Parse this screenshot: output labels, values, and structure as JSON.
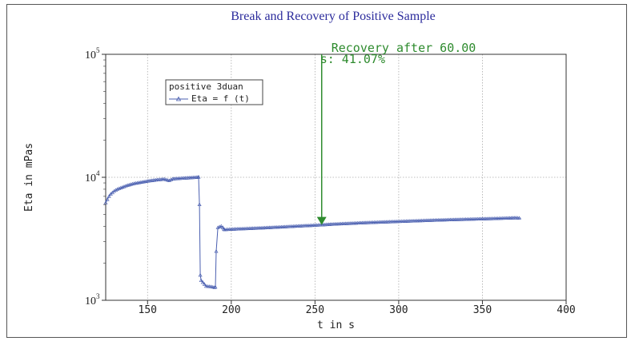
{
  "chart_data": {
    "type": "line",
    "title": "Break and Recovery of Positive Sample",
    "xlabel": "t in s",
    "ylabel": "Eta in mPas",
    "xlim": [
      125,
      400
    ],
    "ylim": [
      1000,
      100000
    ],
    "yscale": "log",
    "grid": true,
    "x_ticks": [
      150,
      200,
      250,
      300,
      350,
      400
    ],
    "x_tick_labels": [
      "150",
      "200",
      "250",
      "300",
      "350",
      "400"
    ],
    "y_ticks": [
      {
        "value": 1000,
        "base": "10",
        "exp": "3"
      },
      {
        "value": 10000,
        "base": "10",
        "exp": "4"
      },
      {
        "value": 100000,
        "base": "10",
        "exp": "5"
      }
    ],
    "legend": {
      "position": "upper-left",
      "title": "positive 3duan",
      "entries": [
        "Eta = f (t)"
      ]
    },
    "series": [
      {
        "name": "Eta = f (t)",
        "color": "#4a5fb0",
        "marker": "triangle",
        "x": [
          125,
          126,
          127,
          128,
          130,
          132,
          135,
          138,
          142,
          146,
          150,
          155,
          160,
          163,
          165,
          170,
          175,
          180,
          180.5,
          181,
          181.5,
          182,
          185,
          188,
          190,
          190.5,
          191,
          192,
          194,
          195,
          195.5,
          196,
          200,
          210,
          220,
          230,
          240,
          250,
          254,
          260,
          270,
          280,
          290,
          300,
          310,
          320,
          330,
          340,
          350,
          360,
          370,
          373
        ],
        "y": [
          6200,
          6600,
          7000,
          7300,
          7700,
          8000,
          8300,
          8600,
          8900,
          9100,
          9300,
          9500,
          9650,
          9400,
          9700,
          9800,
          9900,
          10000,
          10050,
          6000,
          1600,
          1450,
          1300,
          1290,
          1270,
          1280,
          2500,
          3900,
          4000,
          3900,
          3800,
          3750,
          3780,
          3830,
          3880,
          3940,
          4010,
          4070,
          4100,
          4150,
          4210,
          4270,
          4320,
          4370,
          4420,
          4470,
          4510,
          4550,
          4590,
          4630,
          4680,
          4650
        ]
      }
    ],
    "annotations": [
      {
        "text_line1": "Recovery after 60.00",
        "text_line2": "s: 41.07%",
        "x": 254,
        "y_start": 100000,
        "y_end": 4100,
        "color": "#2e8b2e"
      }
    ]
  }
}
